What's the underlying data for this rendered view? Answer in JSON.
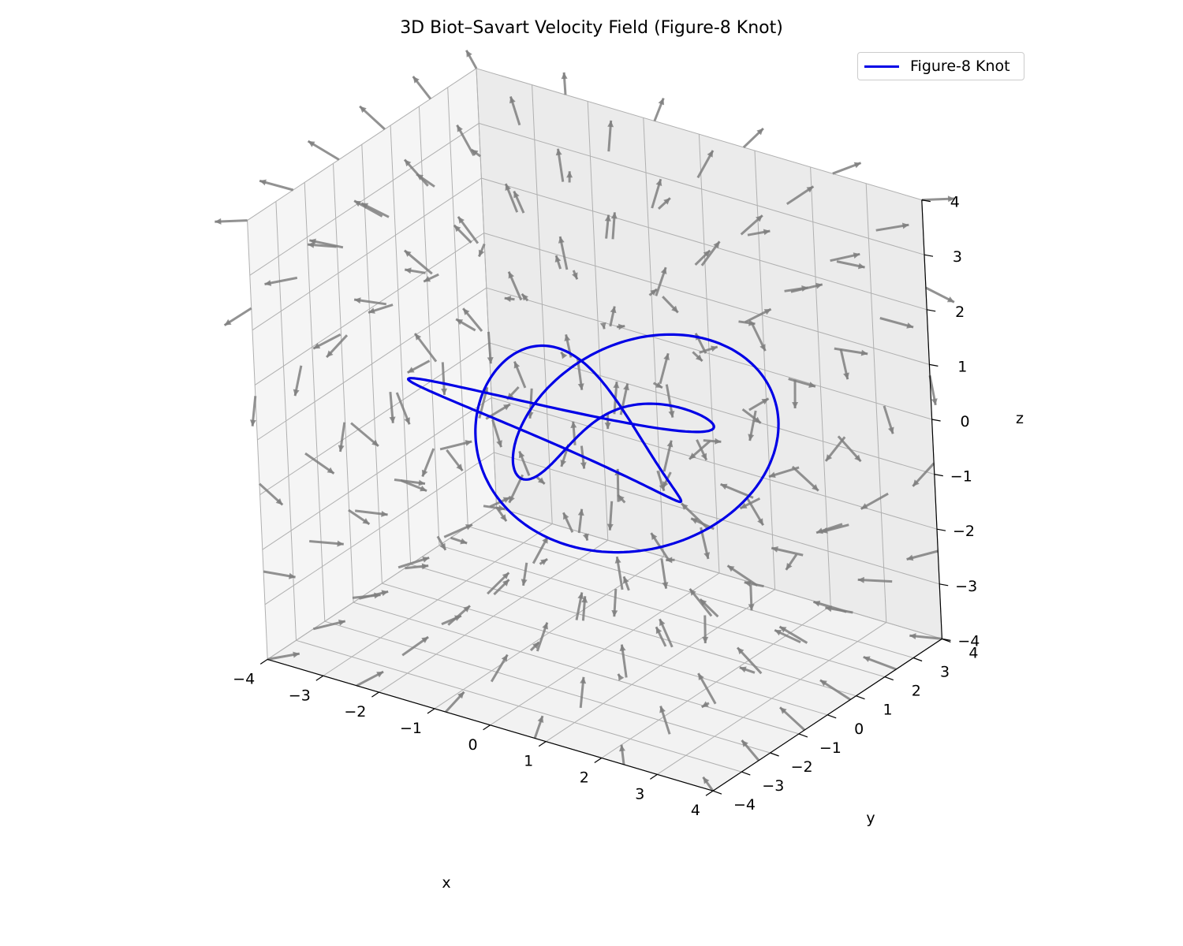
{
  "chart_data": {
    "type": "quiver3d",
    "title": "3D Biot–Savart Velocity Field (Figure-8 Knot)",
    "xlabel": "x",
    "ylabel": "y",
    "zlabel": "z",
    "xlim": [
      -4,
      4
    ],
    "ylim": [
      -4,
      4
    ],
    "zlim": [
      -4,
      4
    ],
    "xticks": [
      "−4",
      "−3",
      "−2",
      "−1",
      "0",
      "1",
      "2",
      "3",
      "4"
    ],
    "yticks": [
      "−4",
      "−3",
      "−2",
      "−1",
      "0",
      "1",
      "2",
      "3",
      "4"
    ],
    "zticks": [
      "−4",
      "−3",
      "−2",
      "−1",
      "0",
      "1",
      "2",
      "3",
      "4"
    ],
    "grid": true,
    "legend_position": "top-right",
    "series": [
      {
        "name": "Figure-8 Knot",
        "kind": "curve",
        "color": "#0000e6",
        "parametric": "x=(2+cos2t)cos3t, y=(2+cos2t)sin3t, z=sin4t"
      },
      {
        "kind": "quiver",
        "color": "#7f7f7f",
        "grid_values": [
          -4,
          -2.4,
          -0.8,
          0.8,
          2.4,
          4
        ]
      }
    ]
  }
}
